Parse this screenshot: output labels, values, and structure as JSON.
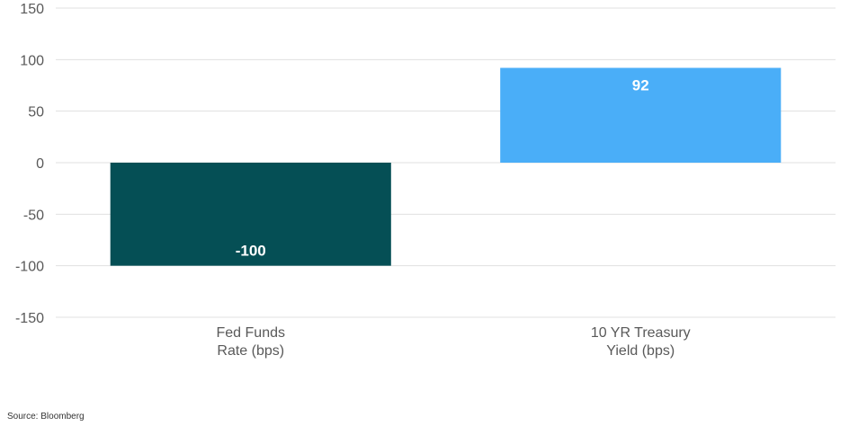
{
  "chart_data": {
    "type": "bar",
    "categories": [
      [
        "Fed Funds",
        "Rate (bps)"
      ],
      [
        "10 YR Treasury",
        "Yield (bps)"
      ]
    ],
    "values": [
      -100,
      92
    ],
    "data_labels": [
      "-100",
      "92"
    ],
    "colors": [
      "#054F55",
      "#4AAEF8"
    ],
    "label_colors": [
      "#ffffff",
      "#ffffff"
    ],
    "ylim": [
      -150,
      150
    ],
    "yticks": [
      150,
      100,
      50,
      0,
      -50,
      -100,
      -150
    ],
    "grid": true,
    "grid_color": "#e0e0e0",
    "title": "",
    "xlabel": "",
    "ylabel": ""
  },
  "footer": {
    "source": "Source: Bloomberg"
  }
}
